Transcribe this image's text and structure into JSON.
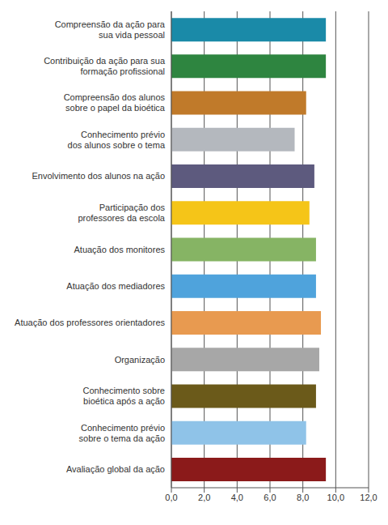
{
  "chart_data": {
    "type": "bar",
    "orientation": "horizontal",
    "categories": [
      "Compreensão da ação para\nsua vida pessoal",
      "Contribuição da ação para sua\nformação profissional",
      "Compreensão dos alunos\nsobre o papel da bioética",
      "Conhecimento prévio\ndos alunos sobre o tema",
      "Envolvimento dos alunos na ação",
      "Participação dos\nprofessores da escola",
      "Atuação dos monitores",
      "Atuação dos mediadores",
      "Atuação dos professores orientadores",
      "Organização",
      "Conhecimento sobre\nbioética após a ação",
      "Conhecimento prévio\nsobre o tema da ação",
      "Avaliação global da ação"
    ],
    "values": [
      9.4,
      9.4,
      8.2,
      7.5,
      8.7,
      8.4,
      8.8,
      8.8,
      9.1,
      9.0,
      8.8,
      8.2,
      9.4
    ],
    "colors": [
      "#1a8aa8",
      "#2e8540",
      "#c07a2a",
      "#b4b8be",
      "#5d5a7e",
      "#f5c518",
      "#86b464",
      "#4fa3dc",
      "#e89a50",
      "#a7a7a7",
      "#6b5a1a",
      "#8fc3e8",
      "#8b1a1a"
    ],
    "xlim": [
      0,
      12
    ],
    "xticks": [
      {
        "value": 0,
        "label": "0,0"
      },
      {
        "value": 2,
        "label": "2,0"
      },
      {
        "value": 4,
        "label": "4,0"
      },
      {
        "value": 6,
        "label": "6,0"
      },
      {
        "value": 8,
        "label": "8,0"
      },
      {
        "value": 10,
        "label": "10,0"
      },
      {
        "value": 12,
        "label": "12,0"
      }
    ],
    "grid": true
  }
}
